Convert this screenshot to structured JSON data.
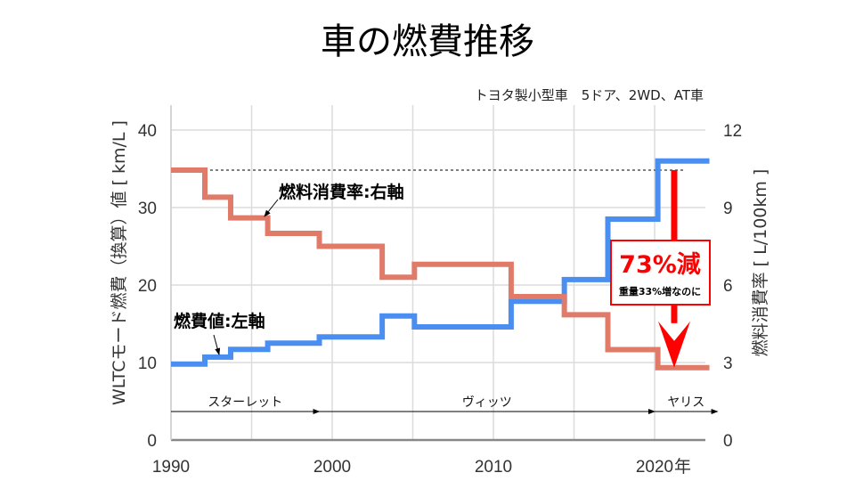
{
  "chart_data": {
    "type": "line",
    "step": true,
    "title": "車の燃費推移",
    "subtitle": "トヨタ製小型車　5ドア、2WD、AT車",
    "xlabel_unit": "年",
    "x_ticks": [
      "1990",
      "2000",
      "2010",
      "2020"
    ],
    "xlim": [
      1990,
      2023.5
    ],
    "ylabel_left": "WLTCモード燃費（換算）値 [ km/L ]",
    "ylim_left": [
      0,
      40
    ],
    "y_ticks_left": [
      "0",
      "10",
      "20",
      "30",
      "40"
    ],
    "ylabel_right": "燃料消費率 [ L/100km ]",
    "ylim_right": [
      0,
      12
    ],
    "y_ticks_right": [
      "0",
      "3",
      "6",
      "9",
      "12"
    ],
    "grid": true,
    "series": [
      {
        "name": "燃費値:左軸",
        "axis": "left",
        "color": "#4a8ef0",
        "steps": [
          {
            "from": 1990,
            "to": 1992.1,
            "value": 9.8
          },
          {
            "from": 1992.1,
            "to": 1993.7,
            "value": 10.7
          },
          {
            "from": 1993.7,
            "to": 1996.0,
            "value": 11.7
          },
          {
            "from": 1996.0,
            "to": 1999.2,
            "value": 12.5
          },
          {
            "from": 1999.2,
            "to": 2003.1,
            "value": 13.3
          },
          {
            "from": 2003.1,
            "to": 2005.1,
            "value": 16.0
          },
          {
            "from": 2005.1,
            "to": 2011.1,
            "value": 14.6
          },
          {
            "from": 2011.1,
            "to": 2014.4,
            "value": 17.9
          },
          {
            "from": 2014.4,
            "to": 2017.1,
            "value": 20.7
          },
          {
            "from": 2017.1,
            "to": 2020.2,
            "value": 28.5
          },
          {
            "from": 2020.2,
            "to": 2023.4,
            "value": 36.0
          }
        ]
      },
      {
        "name": "燃料消費率:右軸",
        "axis": "right",
        "color": "#e07b6a",
        "steps": [
          {
            "from": 1990,
            "to": 1992.1,
            "value": 10.45
          },
          {
            "from": 1992.1,
            "to": 1993.7,
            "value": 9.4
          },
          {
            "from": 1993.7,
            "to": 1996.0,
            "value": 8.6
          },
          {
            "from": 1996.0,
            "to": 1999.2,
            "value": 8.0
          },
          {
            "from": 1999.2,
            "to": 2003.1,
            "value": 7.5
          },
          {
            "from": 2003.1,
            "to": 2005.1,
            "value": 6.3
          },
          {
            "from": 2005.1,
            "to": 2011.1,
            "value": 6.8
          },
          {
            "from": 2011.1,
            "to": 2014.4,
            "value": 5.55
          },
          {
            "from": 2014.4,
            "to": 2017.1,
            "value": 4.85
          },
          {
            "from": 2017.1,
            "to": 2020.2,
            "value": 3.5
          },
          {
            "from": 2020.2,
            "to": 2023.4,
            "value": 2.8
          }
        ]
      }
    ],
    "models": [
      {
        "name": "スターレット",
        "from": 1990,
        "to": 1999.2
      },
      {
        "name": "ヴィッツ",
        "from": 1999.2,
        "to": 2020.0
      },
      {
        "name": "ヤリス",
        "from": 2020.0,
        "to": 2023.9
      }
    ],
    "annotation": {
      "headline": "73%減",
      "note": "重量33%増なのに",
      "color": "#ff0000",
      "from_value_right": 10.45,
      "to_value_right": 2.8
    }
  }
}
